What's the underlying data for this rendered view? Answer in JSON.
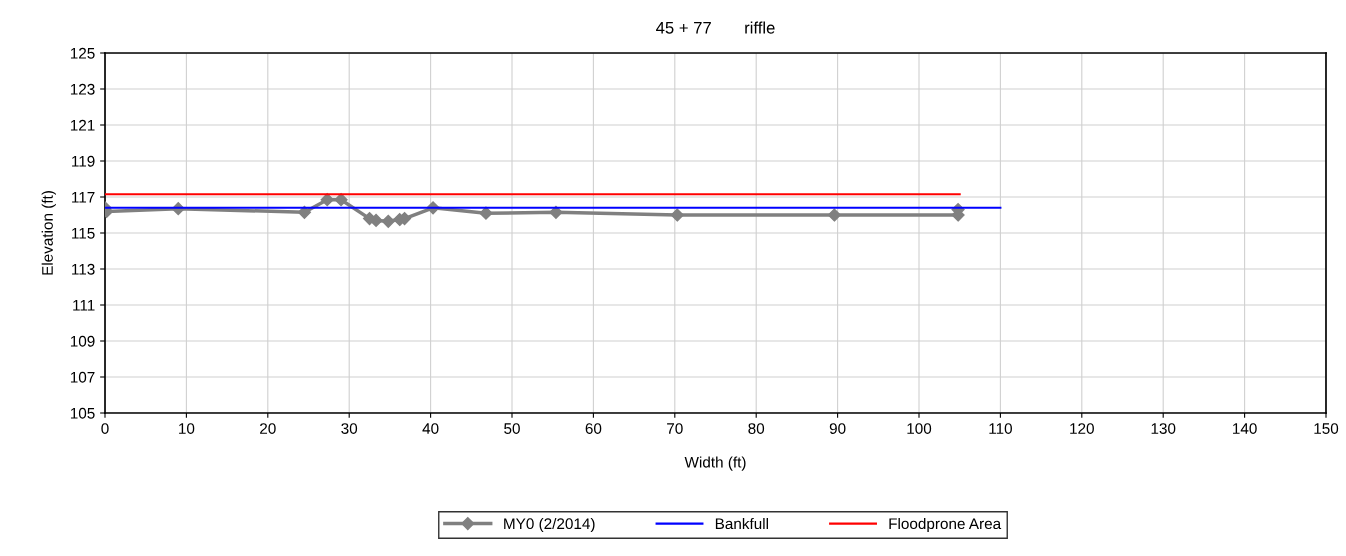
{
  "chart_data": {
    "type": "line",
    "title": "45 + 77       riffle",
    "xlabel": "Width (ft)",
    "ylabel": "Elevation (ft)",
    "xlim": [
      0,
      150
    ],
    "xticks": [
      0,
      10,
      20,
      30,
      40,
      50,
      60,
      70,
      80,
      90,
      100,
      110,
      120,
      130,
      140,
      150
    ],
    "ylim": [
      105,
      125
    ],
    "yticks": [
      105,
      107,
      109,
      111,
      113,
      115,
      117,
      119,
      121,
      123,
      125
    ],
    "grid": true,
    "legend": "bottom",
    "series": [
      {
        "name": "MY0 (2/2014)",
        "color": "#808080",
        "marker": "diamond",
        "x": [
          0,
          0.2,
          9,
          24.5,
          27.3,
          29,
          32.5,
          33.3,
          34.8,
          36.2,
          36.8,
          40.3,
          46.8,
          55.4,
          70.3,
          89.6,
          104.8,
          104.8
        ],
        "values": [
          116.4,
          116.2,
          116.35,
          116.15,
          116.85,
          116.85,
          115.8,
          115.7,
          115.65,
          115.75,
          115.8,
          116.4,
          116.1,
          116.15,
          116.0,
          116.0,
          116.0,
          116.3
        ]
      },
      {
        "name": "Bankfull",
        "color": "#0000ff",
        "marker": "none",
        "x": [
          0,
          110
        ],
        "values": [
          116.4,
          116.4
        ]
      },
      {
        "name": "Floodprone Area",
        "color": "#ff0000",
        "marker": "none",
        "x": [
          0,
          105
        ],
        "values": [
          117.15,
          117.15
        ]
      }
    ]
  }
}
